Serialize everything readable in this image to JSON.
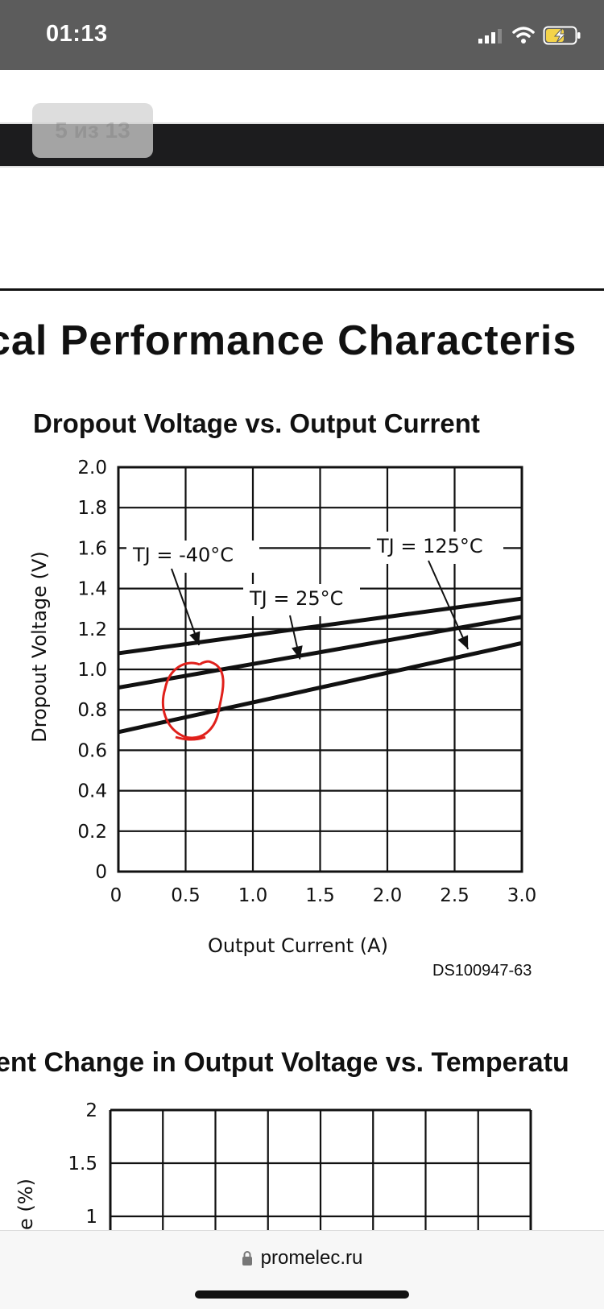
{
  "status_bar": {
    "time": "01:13"
  },
  "viewer": {
    "page_counter": "5 из 13"
  },
  "document": {
    "section_title": "cal Performance Characteris",
    "chart_title": "Dropout Voltage vs. Output Current",
    "chart_code": "DS100947-63",
    "section2_title": "ent Change in Output Voltage vs. Temperatu"
  },
  "chart_data": {
    "type": "line",
    "title": "Dropout Voltage vs. Output Current",
    "xlabel": "Output Current (A)",
    "ylabel": "Dropout Voltage (V)",
    "xlim": [
      0,
      3.0
    ],
    "ylim": [
      0,
      2.0
    ],
    "x_ticks": [
      "0",
      "0.5",
      "1.0",
      "1.5",
      "2.0",
      "2.5",
      "3.0"
    ],
    "y_ticks": [
      "0",
      "0.2",
      "0.4",
      "0.6",
      "0.8",
      "1.0",
      "1.2",
      "1.4",
      "1.6",
      "1.8",
      "2.0"
    ],
    "grid": true,
    "series": [
      {
        "name": "TJ = -40°C",
        "x": [
          0,
          3.0
        ],
        "y": [
          1.08,
          1.35
        ]
      },
      {
        "name": "TJ = 25°C",
        "x": [
          0,
          3.0
        ],
        "y": [
          0.91,
          1.26
        ]
      },
      {
        "name": "TJ = 125°C",
        "x": [
          0,
          3.0
        ],
        "y": [
          0.69,
          1.13
        ]
      }
    ],
    "annotations": [
      {
        "text": "TJ = -40°C",
        "points_to": {
          "x": 0.6,
          "y": 1.12
        }
      },
      {
        "text": "TJ = 25°C",
        "points_to": {
          "x": 1.35,
          "y": 1.05
        }
      },
      {
        "text": "TJ = 125°C",
        "points_to": {
          "x": 2.6,
          "y": 1.1
        }
      }
    ],
    "markup": {
      "type": "hand-drawn circle",
      "color": "#e0201b",
      "around": {
        "x": 0.55,
        "y": 0.85
      }
    }
  },
  "chart2": {
    "y_ticks": [
      "1",
      "1.5",
      "2"
    ],
    "ylabel_fragment": "e (%)"
  },
  "browser": {
    "url": "promelec.ru"
  },
  "colors": {
    "annotation": "#e0201b",
    "status_bar": "#5c5c5c",
    "viewer_bar": "#1c1c1e",
    "battery": "#f4d34a"
  }
}
